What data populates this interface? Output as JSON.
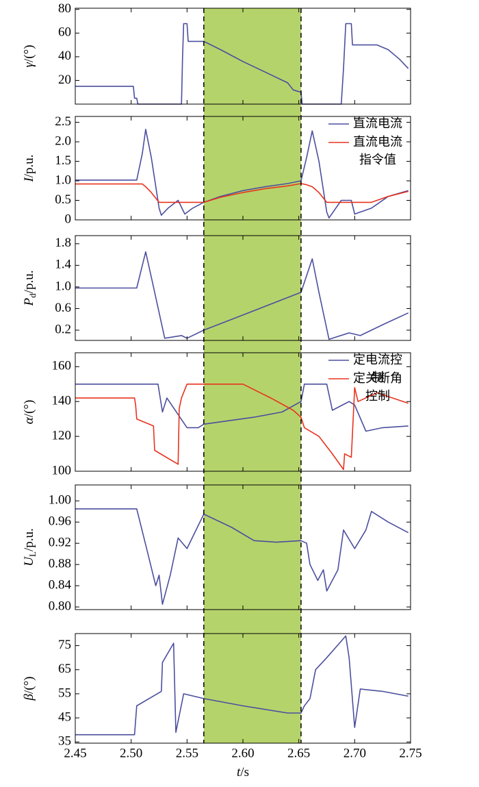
{
  "highlight": {
    "x": [
      2.565,
      2.652
    ],
    "color": "#b5d36b"
  },
  "chart_data": [
    {
      "type": "line",
      "ylabel_var": "γ",
      "ylabel_unit": "/(°)",
      "xlim": [
        2.45,
        2.75
      ],
      "ylim": [
        0,
        81
      ],
      "yticks": [
        20,
        40,
        60,
        80
      ],
      "series": [
        {
          "color": "#4b4e9e",
          "x": [
            2.45,
            2.502,
            2.503,
            2.505,
            2.506,
            2.545,
            2.546,
            2.547,
            2.55,
            2.551,
            2.565,
            2.58,
            2.6,
            2.62,
            2.64,
            2.645,
            2.652,
            2.653,
            2.688,
            2.69,
            2.692,
            2.697,
            2.698,
            2.72,
            2.73,
            2.74,
            2.748
          ],
          "values": [
            15,
            15,
            5,
            5,
            0,
            0,
            40,
            68,
            68,
            53,
            53,
            46,
            36,
            27,
            18,
            12,
            10,
            0,
            0,
            30,
            68,
            68,
            50,
            50,
            46,
            38,
            30
          ]
        }
      ]
    },
    {
      "type": "line",
      "ylabel_var": "I",
      "ylabel_unit": "/p.u.",
      "xlim": [
        2.45,
        2.75
      ],
      "ylim": [
        0,
        2.65
      ],
      "yticks": [
        0,
        0.5,
        {
          "value": 1,
          "label": "1.0"
        },
        1.5,
        {
          "value": 2,
          "label": "2.0"
        },
        2.5
      ],
      "legend": "upper right",
      "x": [
        2.45,
        2.505,
        2.51,
        2.513,
        2.518,
        2.525,
        2.527,
        2.533,
        2.542,
        2.548,
        2.555,
        2.565,
        2.58,
        2.6,
        2.62,
        2.64,
        2.652,
        2.657,
        2.662,
        2.668,
        2.675,
        2.677,
        2.688,
        2.697,
        2.7,
        2.715,
        2.72,
        2.73,
        2.748
      ],
      "series": [
        {
          "name": "直流电流",
          "color": "#4b4e9e",
          "values": [
            1.02,
            1.02,
            1.7,
            2.32,
            1.6,
            0.3,
            0.12,
            0.3,
            0.5,
            0.15,
            0.3,
            0.45,
            0.6,
            0.75,
            0.85,
            0.93,
            1.0,
            1.6,
            2.28,
            1.5,
            0.2,
            0.05,
            0.5,
            0.5,
            0.15,
            0.3,
            0.4,
            0.6,
            0.75
          ]
        },
        {
          "name": "直流电流指令值",
          "color": "#e8321e",
          "values": [
            0.92,
            0.92,
            0.92,
            0.85,
            0.7,
            0.45,
            0.45,
            0.45,
            0.45,
            0.45,
            0.45,
            0.45,
            0.58,
            0.7,
            0.8,
            0.87,
            0.93,
            0.9,
            0.85,
            0.7,
            0.45,
            0.45,
            0.45,
            0.45,
            0.45,
            0.45,
            0.5,
            0.6,
            0.73
          ]
        }
      ]
    },
    {
      "type": "line",
      "ylabel_var": "P",
      "ylabel_sub": "d",
      "ylabel_unit": "/p.u.",
      "xlim": [
        2.45,
        2.75
      ],
      "ylim": [
        0.01,
        1.95
      ],
      "yticks": [
        0.2,
        0.6,
        {
          "value": 1,
          "label": "1.0"
        },
        1.4,
        1.8
      ],
      "series": [
        {
          "color": "#4b4e9e",
          "x": [
            2.45,
            2.505,
            2.513,
            2.52,
            2.53,
            2.545,
            2.55,
            2.565,
            2.6,
            2.652,
            2.662,
            2.668,
            2.677,
            2.695,
            2.705,
            2.725,
            2.748
          ],
          "values": [
            0.98,
            0.98,
            1.65,
            1.0,
            0.05,
            0.1,
            0.05,
            0.2,
            0.48,
            0.9,
            1.52,
            0.9,
            0.03,
            0.15,
            0.1,
            0.3,
            0.52
          ]
        }
      ]
    },
    {
      "type": "line",
      "ylabel_var": "α",
      "ylabel_unit": "/(°)",
      "xlim": [
        2.45,
        2.75
      ],
      "ylim": [
        100,
        168
      ],
      "yticks": [
        100,
        120,
        140,
        160
      ],
      "legend": "upper right",
      "series": [
        {
          "name": "定电流控制",
          "color": "#4b4e9e",
          "x": [
            2.45,
            2.524,
            2.528,
            2.532,
            2.55,
            2.56,
            2.565,
            2.61,
            2.635,
            2.652,
            2.655,
            2.675,
            2.68,
            2.695,
            2.7,
            2.71,
            2.725,
            2.748
          ],
          "values": [
            150,
            150,
            134,
            142,
            125,
            125,
            127,
            131,
            134,
            140,
            150,
            150,
            135,
            140,
            138,
            123,
            125,
            126
          ]
        },
        {
          "name": "定关断角控制",
          "color": "#e8321e",
          "x": [
            2.45,
            2.503,
            2.504,
            2.505,
            2.52,
            2.521,
            2.542,
            2.543,
            2.545,
            2.55,
            2.6,
            2.625,
            2.645,
            2.652,
            2.655,
            2.668,
            2.68,
            2.69,
            2.691,
            2.697,
            2.7,
            2.703,
            2.72,
            2.748
          ],
          "values": [
            142,
            142,
            138,
            130,
            126,
            112,
            104,
            136,
            142,
            150,
            150,
            142,
            135,
            131,
            125,
            120,
            110,
            101,
            110,
            108,
            148,
            140,
            145,
            139
          ]
        }
      ]
    },
    {
      "type": "line",
      "ylabel_var": "U",
      "ylabel_sub": "L",
      "ylabel_unit": "/p.u.",
      "xlim": [
        2.45,
        2.75
      ],
      "ylim": [
        0.795,
        1.03
      ],
      "yticks": [
        {
          "value": 0.8,
          "label": "0.80"
        },
        0.84,
        0.88,
        0.92,
        0.96,
        {
          "value": 1,
          "label": "1.00"
        }
      ],
      "series": [
        {
          "color": "#4b4e9e",
          "x": [
            2.45,
            2.505,
            2.515,
            2.522,
            2.525,
            2.528,
            2.535,
            2.542,
            2.55,
            2.565,
            2.59,
            2.61,
            2.63,
            2.652,
            2.657,
            2.66,
            2.667,
            2.672,
            2.675,
            2.685,
            2.69,
            2.7,
            2.71,
            2.715,
            2.73,
            2.748
          ],
          "values": [
            0.985,
            0.985,
            0.9,
            0.84,
            0.86,
            0.805,
            0.86,
            0.93,
            0.91,
            0.975,
            0.95,
            0.925,
            0.922,
            0.925,
            0.92,
            0.88,
            0.85,
            0.87,
            0.83,
            0.87,
            0.945,
            0.91,
            0.945,
            0.98,
            0.96,
            0.94
          ]
        }
      ]
    },
    {
      "type": "line",
      "ylabel_var": "β",
      "ylabel_unit": "/(°)",
      "xlim": [
        2.45,
        2.75
      ],
      "ylim": [
        34.5,
        80
      ],
      "yticks": [
        35,
        45,
        55,
        65,
        75
      ],
      "xticks": [
        2.45,
        {
          "value": 2.5,
          "label": "2.50"
        },
        2.55,
        {
          "value": 2.6,
          "label": "2.60"
        },
        2.65,
        {
          "value": 2.7,
          "label": "2.70"
        },
        2.75
      ],
      "xlabel_var": "t",
      "xlabel_unit": "/s",
      "series": [
        {
          "color": "#4b4e9e",
          "x": [
            2.45,
            2.503,
            2.505,
            2.527,
            2.528,
            2.538,
            2.54,
            2.547,
            2.565,
            2.6,
            2.64,
            2.652,
            2.655,
            2.66,
            2.665,
            2.675,
            2.692,
            2.695,
            2.7,
            2.705,
            2.725,
            2.748
          ],
          "values": [
            38,
            38,
            50,
            56,
            68,
            76,
            39,
            55,
            53,
            50,
            47,
            47,
            50,
            53,
            65,
            70,
            79,
            70,
            41,
            57,
            56,
            54
          ]
        }
      ]
    }
  ]
}
